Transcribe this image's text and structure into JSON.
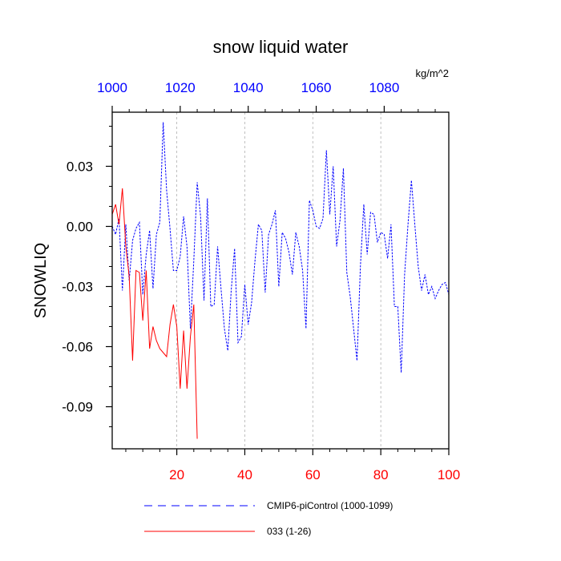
{
  "chart_data": {
    "type": "line",
    "title": "snow liquid water",
    "ylabel": "SNOWLIQ",
    "units_label": "kg/m^2",
    "ylim": [
      -0.111,
      0.057
    ],
    "y_ticks": [
      0.03,
      0.0,
      -0.03,
      -0.06,
      -0.09
    ],
    "y_tick_labels": [
      "0.03",
      "0.00",
      "-0.03",
      "-0.06",
      "-0.09"
    ],
    "bottom_axis": {
      "range": [
        1,
        100
      ],
      "ticks": [
        20,
        40,
        60,
        80,
        100
      ],
      "tick_labels": [
        "20",
        "40",
        "60",
        "80",
        "100"
      ],
      "color": "#ff0000"
    },
    "top_axis": {
      "range": [
        1000,
        1099
      ],
      "ticks": [
        1000,
        1020,
        1040,
        1060,
        1080
      ],
      "tick_labels": [
        "1000",
        "1020",
        "1040",
        "1060",
        "1080"
      ],
      "color": "#0000ff"
    },
    "grid": "vertical dashed at 20, 40, 60, 80",
    "legend_position": "bottom",
    "series": [
      {
        "name": "CMIP6-piControl (1000-1099)",
        "color": "#0000ff",
        "style": "dashed",
        "x": [
          1,
          2,
          3,
          4,
          5,
          6,
          7,
          8,
          9,
          10,
          11,
          12,
          13,
          14,
          15,
          16,
          17,
          18,
          19,
          20,
          21,
          22,
          23,
          24,
          25,
          26,
          27,
          28,
          29,
          30,
          31,
          32,
          33,
          34,
          35,
          36,
          37,
          38,
          39,
          40,
          41,
          42,
          43,
          44,
          45,
          46,
          47,
          48,
          49,
          50,
          51,
          52,
          53,
          54,
          55,
          56,
          57,
          58,
          59,
          60,
          61,
          62,
          63,
          64,
          65,
          66,
          67,
          68,
          69,
          70,
          71,
          72,
          73,
          74,
          75,
          76,
          77,
          78,
          79,
          80,
          81,
          82,
          83,
          84,
          85,
          86,
          87,
          88,
          89,
          90,
          91,
          92,
          93,
          94,
          95,
          96,
          97,
          98,
          99,
          100
        ],
        "values": [
          0.0,
          -0.004,
          0.004,
          -0.032,
          0.001,
          -0.027,
          -0.007,
          -0.001,
          0.002,
          -0.034,
          -0.014,
          -0.002,
          -0.031,
          -0.004,
          0.002,
          0.052,
          0.018,
          -0.001,
          -0.022,
          -0.022,
          -0.015,
          0.005,
          -0.01,
          -0.051,
          -0.017,
          0.022,
          0.005,
          -0.037,
          0.014,
          -0.04,
          -0.039,
          -0.01,
          -0.031,
          -0.051,
          -0.062,
          -0.032,
          -0.011,
          -0.058,
          -0.055,
          -0.029,
          -0.049,
          -0.038,
          -0.017,
          0.001,
          -0.002,
          -0.033,
          -0.004,
          0.001,
          0.008,
          -0.03,
          -0.003,
          -0.006,
          -0.013,
          -0.024,
          -0.003,
          -0.01,
          -0.022,
          -0.051,
          0.013,
          0.008,
          0.0,
          -0.001,
          0.004,
          0.038,
          0.006,
          0.03,
          -0.01,
          0.003,
          0.029,
          -0.023,
          -0.035,
          -0.051,
          -0.067,
          -0.02,
          0.011,
          -0.014,
          0.007,
          0.006,
          -0.008,
          -0.003,
          -0.004,
          -0.016,
          0.001,
          -0.04,
          -0.04,
          -0.073,
          -0.024,
          0.001,
          0.023,
          0.001,
          -0.02,
          -0.032,
          -0.024,
          -0.034,
          -0.03,
          -0.036,
          -0.032,
          -0.029,
          -0.028,
          -0.034
        ]
      },
      {
        "name": "033 (1-26)",
        "color": "#ff0000",
        "style": "solid",
        "x": [
          1,
          2,
          3,
          4,
          5,
          6,
          7,
          8,
          9,
          10,
          11,
          12,
          13,
          14,
          15,
          16,
          17,
          18,
          19,
          20,
          21,
          22,
          23,
          24,
          25,
          26
        ],
        "values": [
          0.006,
          0.011,
          0.001,
          0.019,
          -0.01,
          -0.025,
          -0.067,
          -0.022,
          -0.023,
          -0.047,
          -0.022,
          -0.061,
          -0.05,
          -0.057,
          -0.061,
          -0.063,
          -0.065,
          -0.049,
          -0.039,
          -0.05,
          -0.081,
          -0.052,
          -0.081,
          -0.055,
          -0.039,
          -0.106
        ]
      }
    ]
  }
}
